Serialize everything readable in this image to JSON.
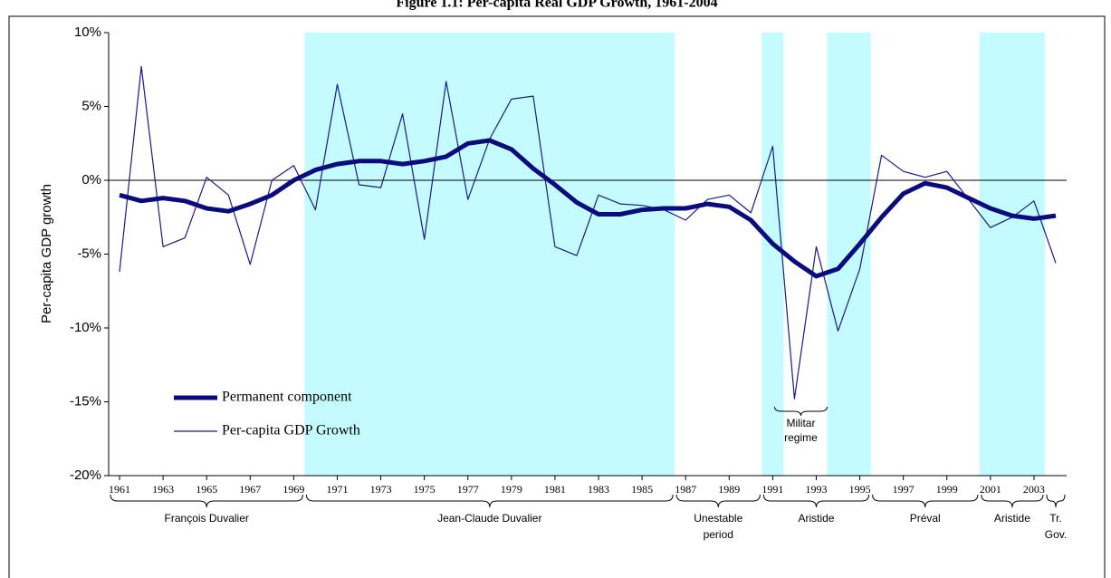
{
  "chart_data": {
    "type": "line",
    "title": "Figure 1.1: Per-capita Real GDP Growth, 1961-2004",
    "y_label": "Per-capita GDP growth",
    "x": [
      1961,
      1962,
      1963,
      1964,
      1965,
      1966,
      1967,
      1968,
      1969,
      1970,
      1971,
      1972,
      1973,
      1974,
      1975,
      1976,
      1977,
      1978,
      1979,
      1980,
      1981,
      1982,
      1983,
      1984,
      1985,
      1986,
      1987,
      1988,
      1989,
      1990,
      1991,
      1992,
      1993,
      1994,
      1995,
      1996,
      1997,
      1998,
      1999,
      2000,
      2001,
      2002,
      2003,
      2004
    ],
    "xlim": [
      1960.5,
      2004.5
    ],
    "xticks": [
      1961,
      1963,
      1965,
      1967,
      1969,
      1971,
      1973,
      1975,
      1977,
      1979,
      1981,
      1983,
      1985,
      1987,
      1989,
      1991,
      1993,
      1995,
      1997,
      1999,
      2001,
      2003
    ],
    "ylim": [
      -20,
      10
    ],
    "yticks": [
      {
        "value": -20,
        "label": "-20%"
      },
      {
        "value": -15,
        "label": "-15%"
      },
      {
        "value": -10,
        "label": "-10%"
      },
      {
        "value": -5,
        "label": "-5%"
      },
      {
        "value": 0,
        "label": "0%"
      },
      {
        "value": 5,
        "label": "5%"
      },
      {
        "value": 10,
        "label": "10%"
      }
    ],
    "series": [
      {
        "name": "Permanent component",
        "color": "#0b0b80",
        "width": 5,
        "values": [
          -1.0,
          -1.4,
          -1.2,
          -1.4,
          -1.9,
          -2.1,
          -1.6,
          -1.0,
          0.0,
          0.7,
          1.1,
          1.3,
          1.3,
          1.1,
          1.3,
          1.6,
          2.5,
          2.7,
          2.1,
          0.8,
          -0.3,
          -1.5,
          -2.3,
          -2.3,
          -2.0,
          -1.9,
          -1.9,
          -1.6,
          -1.8,
          -2.7,
          -4.3,
          -5.5,
          -6.5,
          -6.0,
          -4.3,
          -2.5,
          -0.9,
          -0.2,
          -0.5,
          -1.2,
          -1.9,
          -2.4,
          -2.6,
          -2.4
        ]
      },
      {
        "name": "Per-capita GDP Growth",
        "color": "#1a1a8c",
        "width": 1.2,
        "values": [
          -6.2,
          7.7,
          -4.5,
          -3.9,
          0.2,
          -1.0,
          -5.7,
          0.0,
          1.0,
          -2.0,
          6.5,
          -0.3,
          -0.5,
          4.5,
          -4.0,
          6.7,
          -1.3,
          2.8,
          5.5,
          5.7,
          -4.5,
          -5.1,
          -1.0,
          -1.6,
          -1.7,
          -2.0,
          -2.7,
          -1.3,
          -1.0,
          -2.2,
          2.3,
          -14.8,
          -4.5,
          -10.2,
          -6.0,
          1.7,
          0.6,
          0.2,
          0.6,
          -1.3,
          -3.2,
          -2.5,
          -1.4,
          -5.6
        ]
      }
    ],
    "shaded_periods": [
      [
        1970,
        1986
      ],
      [
        1991,
        1991
      ],
      [
        1994,
        1995
      ],
      [
        2001,
        2003
      ]
    ],
    "shade_color": "#c4fbff",
    "periods": [
      {
        "label": [
          "François Duvalier"
        ],
        "start": 1961,
        "end": 1969
      },
      {
        "label": [
          "Jean-Claude Duvalier"
        ],
        "start": 1970,
        "end": 1986
      },
      {
        "label": [
          "Unestable",
          "period"
        ],
        "start": 1987,
        "end": 1990
      },
      {
        "label": [
          "Aristide"
        ],
        "start": 1991,
        "end": 1995
      },
      {
        "label": [
          "Préval"
        ],
        "start": 1996,
        "end": 2000
      },
      {
        "label": [
          "Aristide"
        ],
        "start": 2001,
        "end": 2003
      },
      {
        "label": [
          "Tr.",
          "Gov."
        ],
        "start": 2004,
        "end": 2004
      }
    ],
    "annotation": {
      "label": [
        "Militar",
        "regime"
      ],
      "start": 1992,
      "end": 1993
    }
  }
}
